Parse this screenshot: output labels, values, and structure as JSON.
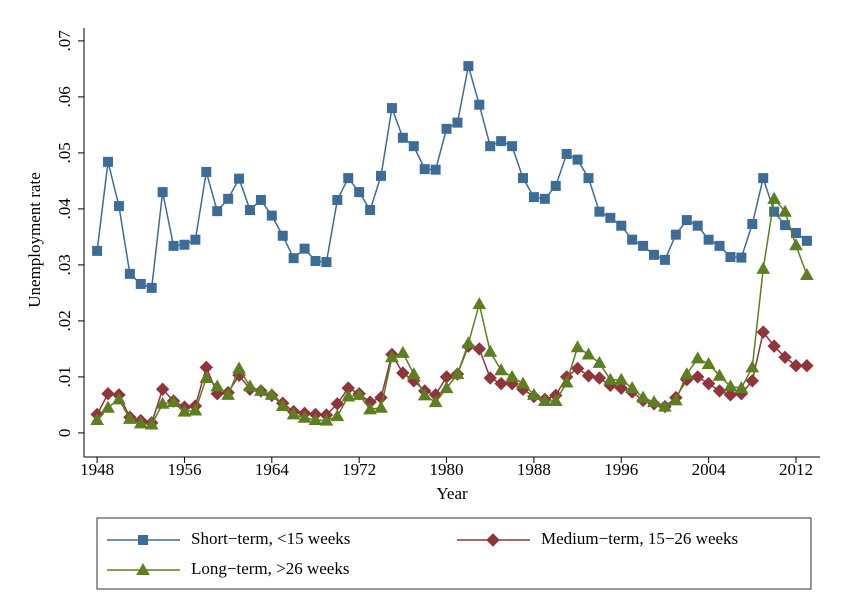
{
  "chart_data": {
    "type": "line",
    "x_label": "Year",
    "y_label": "Unemployment rate",
    "x": [
      1948,
      1949,
      1950,
      1951,
      1952,
      1953,
      1954,
      1955,
      1956,
      1957,
      1958,
      1959,
      1960,
      1961,
      1962,
      1963,
      1964,
      1965,
      1966,
      1967,
      1968,
      1969,
      1970,
      1971,
      1972,
      1973,
      1974,
      1975,
      1976,
      1977,
      1978,
      1979,
      1980,
      1981,
      1982,
      1983,
      1984,
      1985,
      1986,
      1987,
      1988,
      1989,
      1990,
      1991,
      1992,
      1993,
      1994,
      1995,
      1996,
      1997,
      1998,
      1999,
      2000,
      2001,
      2002,
      2003,
      2004,
      2005,
      2006,
      2007,
      2008,
      2009,
      2010,
      2011,
      2012,
      2013
    ],
    "series": [
      {
        "name": "Short−term, <15 weeks",
        "color": "#3c6c97",
        "marker": "square",
        "values": [
          0.0325,
          0.0484,
          0.0405,
          0.0284,
          0.0266,
          0.0259,
          0.043,
          0.0334,
          0.0336,
          0.0345,
          0.0466,
          0.0396,
          0.0418,
          0.0454,
          0.0398,
          0.0416,
          0.0388,
          0.0352,
          0.0312,
          0.0329,
          0.0307,
          0.0305,
          0.0416,
          0.0455,
          0.043,
          0.0398,
          0.0459,
          0.058,
          0.0527,
          0.0512,
          0.0471,
          0.047,
          0.0543,
          0.0554,
          0.0655,
          0.0586,
          0.0512,
          0.0521,
          0.0512,
          0.0455,
          0.0421,
          0.0418,
          0.0441,
          0.0498,
          0.0488,
          0.0455,
          0.0395,
          0.0384,
          0.037,
          0.0345,
          0.0334,
          0.0318,
          0.0309,
          0.0354,
          0.038,
          0.037,
          0.0345,
          0.0334,
          0.0314,
          0.0313,
          0.0373,
          0.0455,
          0.0395,
          0.0371,
          0.0357,
          0.0343
        ]
      },
      {
        "name": "Medium−term, 15−26 weeks",
        "color": "#90353b",
        "marker": "diamond",
        "values": [
          0.0033,
          0.007,
          0.0068,
          0.0028,
          0.0022,
          0.0018,
          0.0078,
          0.0057,
          0.0046,
          0.0048,
          0.0117,
          0.007,
          0.0072,
          0.0103,
          0.0078,
          0.0075,
          0.0067,
          0.0053,
          0.0038,
          0.0035,
          0.0033,
          0.0032,
          0.0052,
          0.008,
          0.007,
          0.0055,
          0.0063,
          0.014,
          0.0107,
          0.0093,
          0.0075,
          0.0068,
          0.01,
          0.0105,
          0.0155,
          0.015,
          0.0098,
          0.0088,
          0.0088,
          0.0078,
          0.0065,
          0.006,
          0.0067,
          0.01,
          0.0115,
          0.0102,
          0.0098,
          0.0085,
          0.008,
          0.0073,
          0.0058,
          0.0052,
          0.0047,
          0.0063,
          0.0095,
          0.01,
          0.0088,
          0.0075,
          0.0068,
          0.007,
          0.0093,
          0.018,
          0.0155,
          0.0135,
          0.012,
          0.012
        ]
      },
      {
        "name": "Long−term, >26 weeks",
        "color": "#5d7f22",
        "marker": "triangle",
        "values": [
          0.0023,
          0.0045,
          0.006,
          0.0025,
          0.0017,
          0.0015,
          0.0052,
          0.0055,
          0.0038,
          0.004,
          0.0098,
          0.0083,
          0.0068,
          0.0115,
          0.0083,
          0.0075,
          0.0068,
          0.0048,
          0.0033,
          0.0027,
          0.0023,
          0.0022,
          0.003,
          0.0065,
          0.0068,
          0.0042,
          0.0045,
          0.0135,
          0.0143,
          0.0105,
          0.0067,
          0.0055,
          0.008,
          0.0105,
          0.016,
          0.023,
          0.0145,
          0.0112,
          0.01,
          0.0088,
          0.0068,
          0.0057,
          0.0057,
          0.009,
          0.0153,
          0.014,
          0.0125,
          0.0095,
          0.0095,
          0.008,
          0.0063,
          0.0055,
          0.0047,
          0.0058,
          0.0105,
          0.0133,
          0.0123,
          0.0102,
          0.0083,
          0.008,
          0.0117,
          0.0293,
          0.0418,
          0.0395,
          0.0335,
          0.0282
        ]
      }
    ],
    "xlim": [
      1946.8,
      2014.2
    ],
    "ylim": [
      -0.0043,
      0.0723
    ],
    "xticks": [
      1948,
      1956,
      1964,
      1972,
      1980,
      1988,
      1996,
      2004,
      2012
    ],
    "yticks": [
      0,
      {
        "value": 0.01,
        "label": ".01"
      },
      {
        "value": 0.02,
        "label": ".02"
      },
      {
        "value": 0.03,
        "label": ".03"
      },
      {
        "value": 0.04,
        "label": ".04"
      },
      {
        "value": 0.05,
        "label": ".05"
      },
      {
        "value": 0.06,
        "label": ".06"
      },
      {
        "value": 0.07,
        "label": ".07"
      }
    ]
  }
}
